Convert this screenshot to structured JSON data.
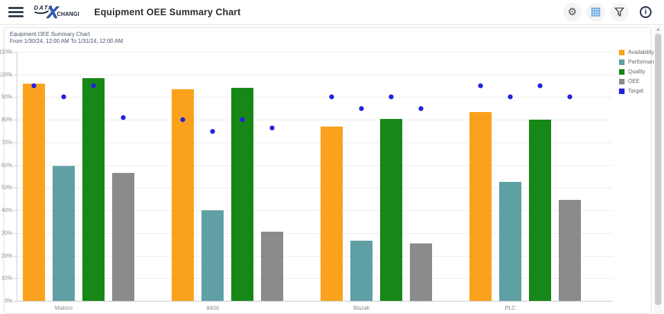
{
  "header": {
    "logo": {
      "part1": "DATA",
      "x": "X",
      "part2": "CHANGE"
    },
    "title": "Equipment OEE Summary Chart",
    "icon_glyphs": {
      "settings": "⚙",
      "info": "i",
      "scroll_up": "▲"
    }
  },
  "chart": {
    "title": "Equipment OEE Summary Chart",
    "subtitle": "From 1/30/24, 12:00 AM To 1/31/24, 12:00 AM"
  },
  "chart_data": {
    "type": "bar",
    "title": "Equipment OEE Summary Chart",
    "subtitle": "From 1/30/24, 12:00 AM To 1/31/24, 12:00 AM",
    "categories": [
      "Makino",
      "840d",
      "Mazak",
      "PLC"
    ],
    "series": [
      {
        "name": "Availability",
        "color": "#FAA21E",
        "values": [
          96,
          93.5,
          77,
          83.5
        ]
      },
      {
        "name": "Performance",
        "color": "#5FA0A5",
        "values": [
          59.5,
          40,
          26.5,
          52.5
        ]
      },
      {
        "name": "Quality",
        "color": "#178717",
        "values": [
          98.5,
          94,
          80.5,
          80
        ]
      },
      {
        "name": "OEE",
        "color": "#8B8B8B",
        "values": [
          56.5,
          30.5,
          25.5,
          44.5
        ]
      }
    ],
    "target_series": {
      "name": "Target",
      "type": "scatter",
      "color": "#2323DF",
      "values": [
        [
          95,
          90,
          95,
          81
        ],
        [
          80,
          75,
          80,
          76.5
        ],
        [
          90,
          85,
          90,
          85
        ],
        [
          95,
          90,
          95,
          90
        ]
      ]
    },
    "ylim": [
      0,
      110
    ],
    "ytick_step": 10,
    "ytick_suffix": "%",
    "grid": true,
    "legend_position": "right",
    "legend_entries": [
      "Availability",
      "Performance",
      "Quality",
      "OEE",
      "Target"
    ]
  }
}
